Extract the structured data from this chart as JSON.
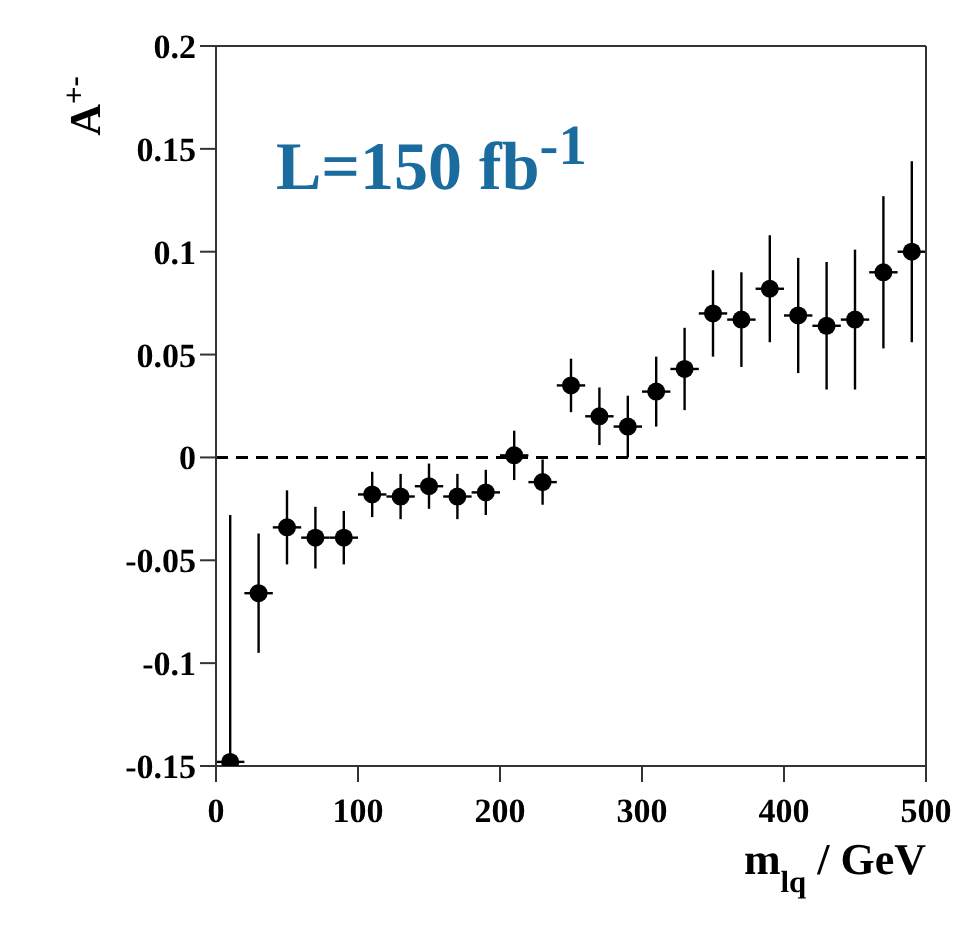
{
  "chart_data": {
    "type": "scatter",
    "xlabel": "m$_{lq}$ / GeV",
    "ylabel": "A$^{+-}$",
    "annotations": [
      "L=150 fb$^{-1}$"
    ],
    "x": [
      10,
      30,
      50,
      70,
      90,
      110,
      130,
      150,
      170,
      190,
      210,
      230,
      250,
      270,
      290,
      310,
      330,
      350,
      370,
      390,
      410,
      430,
      450,
      470,
      490
    ],
    "series": [
      {
        "color": "#000000",
        "values": [
          -0.148,
          -0.066,
          -0.034,
          -0.039,
          -0.039,
          -0.018,
          -0.019,
          -0.014,
          -0.019,
          -0.017,
          0.001,
          -0.012,
          0.035,
          0.02,
          0.015,
          0.032,
          0.043,
          0.07,
          0.067,
          0.082,
          0.069,
          0.064,
          0.067,
          0.09,
          0.1
        ],
        "errors": [
          [
            -0.15,
            -0.028
          ],
          0.029,
          0.018,
          0.015,
          0.013,
          0.011,
          0.011,
          0.011,
          0.011,
          0.011,
          0.012,
          0.011,
          0.013,
          0.014,
          0.015,
          0.017,
          0.02,
          0.021,
          0.023,
          0.026,
          0.028,
          0.031,
          0.034,
          0.037,
          0.044
        ],
        "xerrors": [
          10,
          10,
          10,
          10,
          10,
          10,
          10,
          10,
          10,
          10,
          10,
          10,
          10,
          10,
          10,
          10,
          10,
          10,
          10,
          10,
          10,
          10,
          10,
          10,
          10
        ]
      }
    ],
    "xlim": [
      0,
      500
    ],
    "xticks": [
      0,
      100,
      200,
      300,
      400,
      500
    ],
    "ylim": [
      -0.15,
      0.2
    ],
    "yticks": [
      -0.15,
      -0.1,
      -0.05,
      0,
      0.05,
      0.1,
      0.15,
      0.2
    ],
    "ref_lines": [
      {
        "axis": "y",
        "value": 0,
        "line_style": "dashed",
        "color": "#000000"
      }
    ],
    "marker": "circle",
    "grid": false,
    "legend": false
  }
}
